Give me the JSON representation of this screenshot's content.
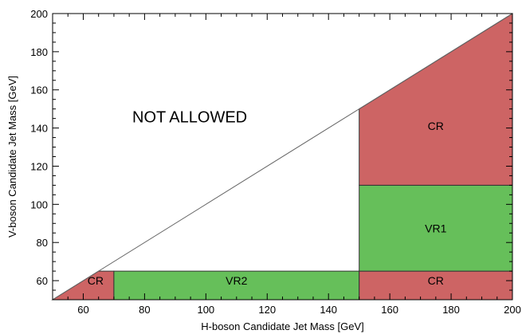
{
  "chart_data": {
    "type": "region-map",
    "xlabel": "H-boson Candidate Jet Mass [GeV]",
    "ylabel": "V-boson Candidate Jet Mass [GeV]",
    "xlim": [
      50,
      200
    ],
    "ylim": [
      50,
      200
    ],
    "x_ticks": [
      60,
      80,
      100,
      120,
      140,
      160,
      180,
      200
    ],
    "y_ticks": [
      60,
      80,
      100,
      120,
      140,
      160,
      180,
      200
    ],
    "colors": {
      "CR": "#cd6464",
      "VR": "#66bf5a",
      "border": "#333333",
      "diagonal": "#666666"
    },
    "diagonal": {
      "from": [
        50,
        50
      ],
      "to": [
        200,
        200
      ]
    },
    "regions": [
      {
        "label": "CR",
        "kind": "CR",
        "polygon": [
          [
            50,
            50
          ],
          [
            70,
            50
          ],
          [
            70,
            65
          ],
          [
            65,
            65
          ]
        ],
        "label_pos": [
          64,
          60
        ]
      },
      {
        "label": "VR2",
        "kind": "VR",
        "polygon": [
          [
            70,
            50
          ],
          [
            150,
            50
          ],
          [
            150,
            65
          ],
          [
            70,
            65
          ]
        ],
        "label_pos": [
          110,
          60
        ]
      },
      {
        "label": "CR",
        "kind": "CR",
        "polygon": [
          [
            150,
            50
          ],
          [
            200,
            50
          ],
          [
            200,
            65
          ],
          [
            150,
            65
          ]
        ],
        "label_pos": [
          175,
          60
        ]
      },
      {
        "label": "VR1",
        "kind": "VR",
        "polygon": [
          [
            150,
            65
          ],
          [
            200,
            65
          ],
          [
            200,
            110
          ],
          [
            150,
            110
          ]
        ],
        "label_pos": [
          175,
          87.5
        ]
      },
      {
        "label": "CR",
        "kind": "CR",
        "polygon": [
          [
            150,
            110
          ],
          [
            200,
            110
          ],
          [
            200,
            200
          ],
          [
            150,
            150
          ]
        ],
        "label_pos": [
          175,
          141
        ]
      }
    ],
    "annotation": {
      "text": "NOT ALLOWED",
      "pos": [
        76,
        143
      ]
    }
  }
}
